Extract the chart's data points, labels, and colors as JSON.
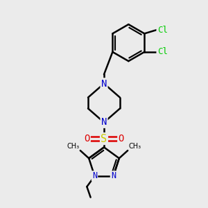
{
  "bg_color": "#ebebeb",
  "bond_color": "#000000",
  "bond_width": 1.8,
  "N_color": "#0000cc",
  "O_color": "#dd0000",
  "S_color": "#cccc00",
  "Cl_color": "#00cc00",
  "font_size": 8.5,
  "figsize": [
    3.0,
    3.0
  ],
  "dpi": 100,
  "xlim": [
    0,
    10
  ],
  "ylim": [
    0,
    10
  ]
}
